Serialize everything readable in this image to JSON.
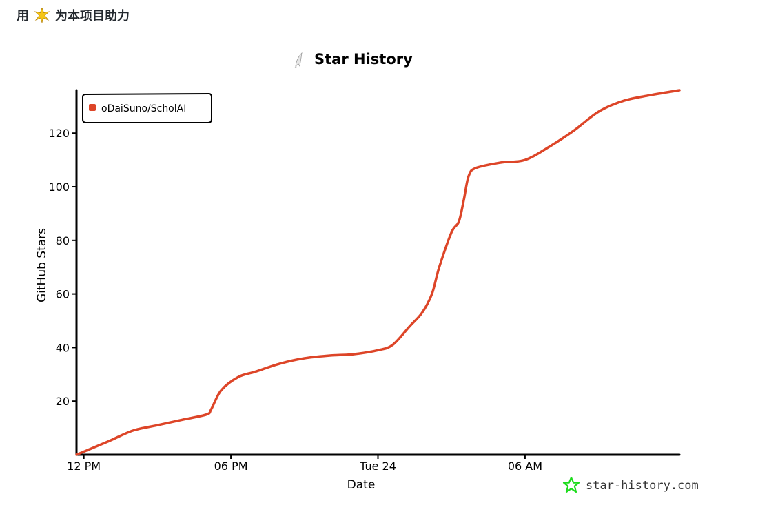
{
  "header": {
    "text_before": "用",
    "text_after": "为本项目助力",
    "icon": "sparkle-star-icon"
  },
  "colors": {
    "series": "#dd4528",
    "axis": "#000000",
    "brand": "#1edc1e",
    "header_star": "#f5c518"
  },
  "branding": {
    "text": "star-history.com",
    "icon": "star-outline-icon"
  },
  "chart_data": {
    "type": "line",
    "title": "Star History",
    "title_icon": "rocket-icon",
    "xlabel": "Date",
    "ylabel": "GitHub Stars",
    "x_ticks": [
      "12 PM",
      "06 PM",
      "Tue 24",
      "06 AM"
    ],
    "y_ticks": [
      20,
      40,
      60,
      80,
      100,
      120
    ],
    "ylim": [
      0,
      136
    ],
    "xlim_hours": [
      -0.3,
      24.3
    ],
    "x_unit": "hours",
    "grid": false,
    "legend_position": "top-left",
    "series": [
      {
        "name": "oDaiSuno/ScholAI",
        "points": [
          [
            -0.3,
            0
          ],
          [
            1,
            5
          ],
          [
            2,
            9
          ],
          [
            3,
            11
          ],
          [
            4,
            13
          ],
          [
            5,
            15
          ],
          [
            5.2,
            17
          ],
          [
            5.6,
            24
          ],
          [
            6.3,
            29
          ],
          [
            7,
            31
          ],
          [
            8,
            34
          ],
          [
            9,
            36
          ],
          [
            10,
            37
          ],
          [
            11,
            37.5
          ],
          [
            12,
            39
          ],
          [
            12.6,
            41
          ],
          [
            13.3,
            48
          ],
          [
            13.8,
            53
          ],
          [
            14.2,
            60
          ],
          [
            14.5,
            70
          ],
          [
            15,
            83
          ],
          [
            15.3,
            87
          ],
          [
            15.5,
            95
          ],
          [
            15.7,
            104
          ],
          [
            16,
            107
          ],
          [
            17,
            109
          ],
          [
            18,
            110
          ],
          [
            19,
            115
          ],
          [
            20,
            121
          ],
          [
            21,
            128
          ],
          [
            22,
            132
          ],
          [
            23,
            134
          ],
          [
            24.3,
            136
          ]
        ]
      }
    ]
  }
}
